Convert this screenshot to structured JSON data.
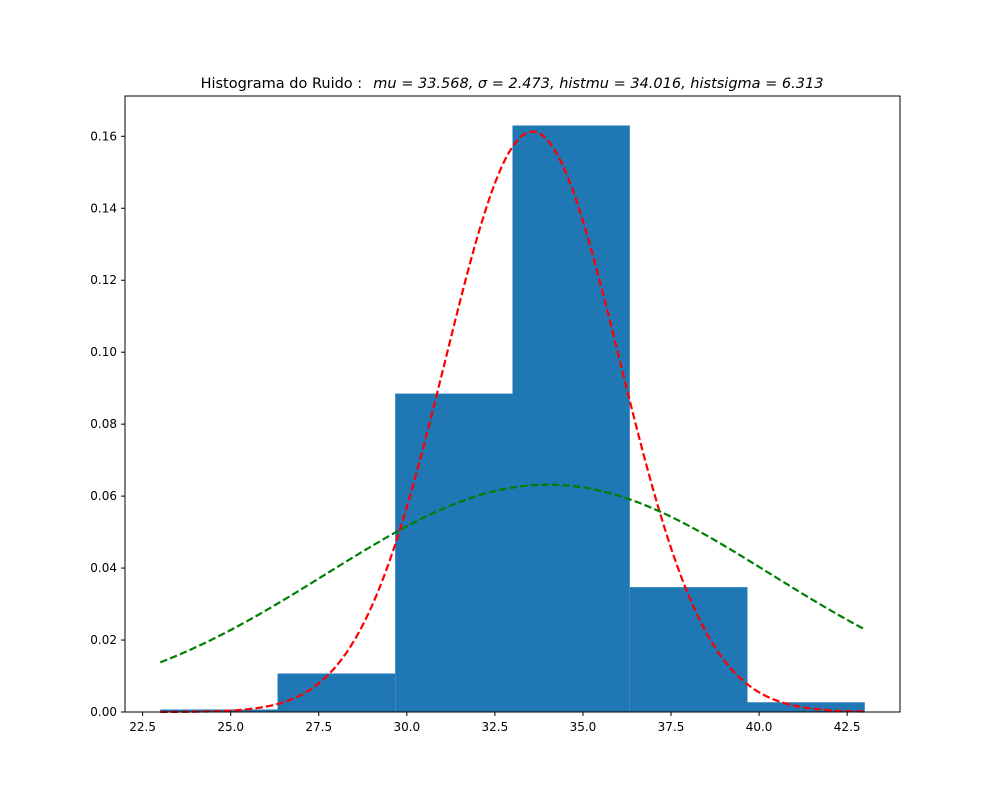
{
  "chart_data": {
    "type": "bar",
    "title": {
      "prefix": "Histograma do Ruido :",
      "equation": "mu = 33.568,  σ = 2.473,  histmu = 34.016,  histsigma = 6.313"
    },
    "xlabel": "",
    "ylabel": "",
    "xlim": [
      22.0,
      44.0
    ],
    "ylim": [
      0.0,
      0.1712
    ],
    "grid": false,
    "x_ticks": [
      22.5,
      25.0,
      27.5,
      30.0,
      32.5,
      35.0,
      37.5,
      40.0,
      42.5
    ],
    "x_tick_labels": [
      "22.5",
      "25.0",
      "27.5",
      "30.0",
      "32.5",
      "35.0",
      "37.5",
      "40.0",
      "42.5"
    ],
    "y_ticks": [
      0.0,
      0.02,
      0.04,
      0.06,
      0.08,
      0.1,
      0.12,
      0.14,
      0.16
    ],
    "y_tick_labels": [
      "0.00",
      "0.02",
      "0.04",
      "0.06",
      "0.08",
      "0.10",
      "0.12",
      "0.14",
      "0.16"
    ],
    "bins": [
      {
        "x0": 23.0,
        "x1": 26.33,
        "value": 0.0007
      },
      {
        "x0": 26.33,
        "x1": 29.67,
        "value": 0.0107
      },
      {
        "x0": 29.67,
        "x1": 33.0,
        "value": 0.0885
      },
      {
        "x0": 33.0,
        "x1": 36.33,
        "value": 0.163
      },
      {
        "x0": 36.33,
        "x1": 39.67,
        "value": 0.0347
      },
      {
        "x0": 39.67,
        "x1": 43.0,
        "value": 0.0027
      }
    ],
    "curves": [
      {
        "kind": "normal_pdf",
        "mu": 33.568,
        "sigma": 2.473,
        "x_range": [
          23.0,
          43.0
        ],
        "color": "#ff0000",
        "style": "dashed"
      },
      {
        "kind": "normal_pdf",
        "mu": 34.016,
        "sigma": 6.313,
        "x_range": [
          23.0,
          43.0
        ],
        "color": "#008000",
        "style": "dashed"
      }
    ],
    "bar_color": "#1f77b4"
  }
}
